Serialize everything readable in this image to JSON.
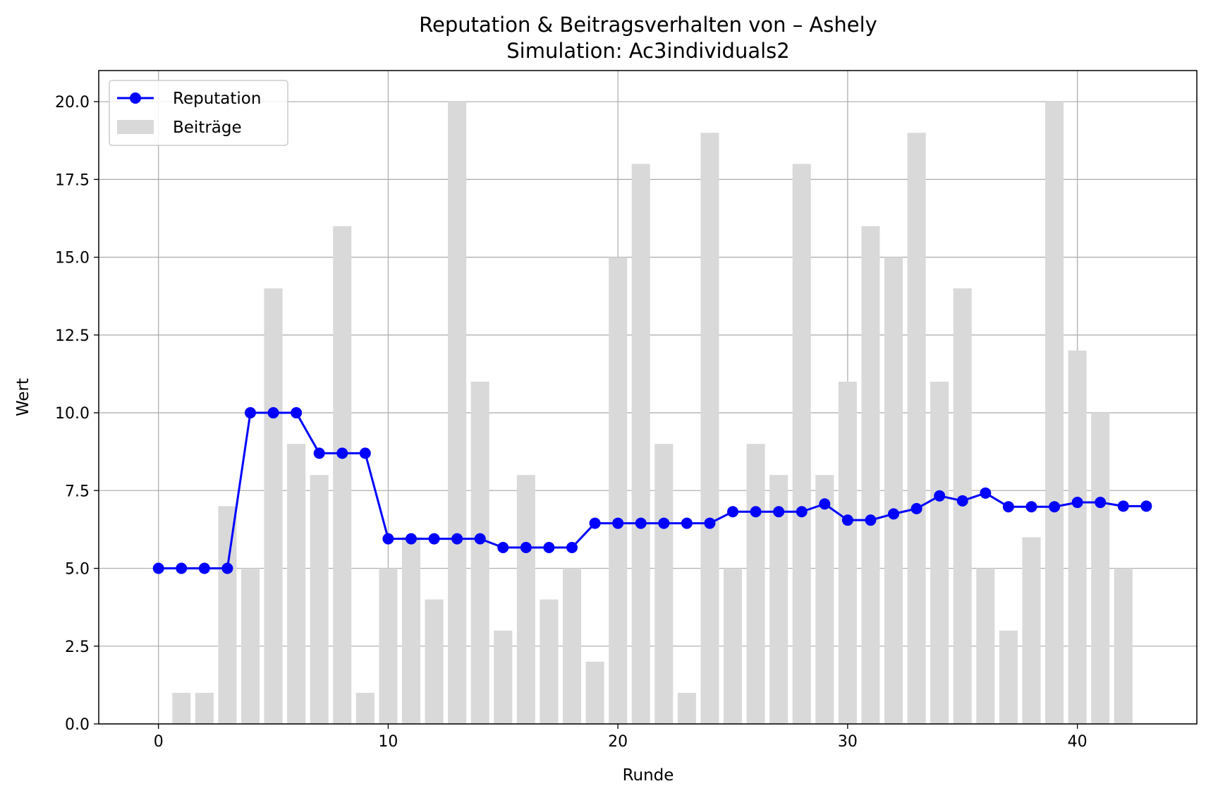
{
  "chart_data": {
    "type": "bar",
    "title": "Reputation & Beitragsverhalten von – Ashely",
    "subtitle": "Simulation: Ac3individuals2",
    "xlabel": "Runde",
    "ylabel": "Wert",
    "xlim": [
      -2.6,
      45.2
    ],
    "ylim": [
      0,
      21
    ],
    "xticks": [
      0,
      10,
      20,
      30,
      40
    ],
    "yticks": [
      0.0,
      2.5,
      5.0,
      7.5,
      10.0,
      12.5,
      15.0,
      17.5,
      20.0
    ],
    "x_tick_labels": [
      "0",
      "10",
      "20",
      "30",
      "40"
    ],
    "y_tick_labels": [
      "0.0",
      "2.5",
      "5.0",
      "7.5",
      "10.0",
      "12.5",
      "15.0",
      "17.5",
      "20.0"
    ],
    "grid": true,
    "legend_position": "top-left",
    "legend": [
      "Reputation",
      "Beiträge"
    ],
    "x": [
      0,
      1,
      2,
      3,
      4,
      5,
      6,
      7,
      8,
      9,
      10,
      11,
      12,
      13,
      14,
      15,
      16,
      17,
      18,
      19,
      20,
      21,
      22,
      23,
      24,
      25,
      26,
      27,
      28,
      29,
      30,
      31,
      32,
      33,
      34,
      35,
      36,
      37,
      38,
      39,
      40,
      41,
      42,
      43
    ],
    "series": [
      {
        "name": "Beiträge",
        "kind": "bar",
        "color": "#d9d9d9",
        "values": [
          0,
          1,
          1,
          7,
          5,
          14,
          9,
          8,
          16,
          1,
          5,
          6,
          4,
          20,
          11,
          3,
          8,
          4,
          5,
          2,
          15,
          18,
          9,
          1,
          19,
          5,
          9,
          8,
          18,
          8,
          11,
          16,
          15,
          19,
          11,
          14,
          5,
          3,
          6,
          20,
          12,
          10,
          5,
          0
        ]
      },
      {
        "name": "Reputation",
        "kind": "line",
        "color": "#0000ff",
        "values": [
          5.0,
          5.0,
          5.0,
          5.0,
          10.0,
          10.0,
          10.0,
          8.7,
          8.7,
          8.7,
          5.95,
          5.95,
          5.95,
          5.95,
          5.95,
          5.67,
          5.67,
          5.67,
          5.67,
          6.45,
          6.45,
          6.45,
          6.45,
          6.45,
          6.45,
          6.82,
          6.82,
          6.82,
          6.82,
          7.07,
          6.55,
          6.55,
          6.75,
          6.92,
          7.33,
          7.17,
          7.42,
          6.98,
          6.98,
          6.98,
          7.12,
          7.12,
          7.0,
          7.0
        ]
      }
    ]
  }
}
